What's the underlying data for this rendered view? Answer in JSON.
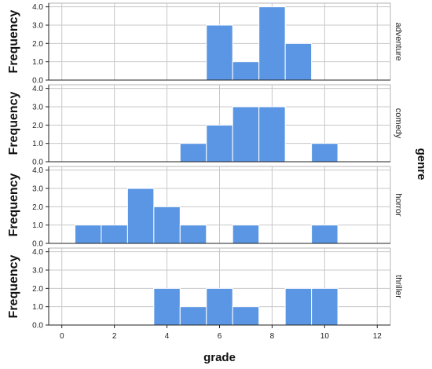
{
  "chart_data": {
    "type": "bar",
    "subtype": "faceted-histogram",
    "xlabel": "grade",
    "ylabel": "Frequency",
    "facet_label": "genre",
    "bar_color": "#5a96e3",
    "bin_width": 1,
    "xlim": [
      -0.5,
      12.5
    ],
    "xticks": [
      0,
      2,
      4,
      6,
      8,
      10,
      12
    ],
    "xtick_labels": [
      "0",
      "2",
      "4",
      "6",
      "8",
      "10",
      "12"
    ],
    "ylim": [
      0,
      4.2
    ],
    "yticks": [
      0,
      1,
      2,
      3,
      4
    ],
    "ytick_labels": [
      "0.0",
      "1.0",
      "2.0",
      "3.0",
      "4.0"
    ],
    "grid": true,
    "panels": [
      {
        "name": "adventure",
        "bins": [
          {
            "center": 6,
            "count": 3
          },
          {
            "center": 7,
            "count": 1
          },
          {
            "center": 8,
            "count": 4
          },
          {
            "center": 9,
            "count": 2
          }
        ]
      },
      {
        "name": "comedy",
        "bins": [
          {
            "center": 5,
            "count": 1
          },
          {
            "center": 6,
            "count": 2
          },
          {
            "center": 7,
            "count": 3
          },
          {
            "center": 8,
            "count": 3
          },
          {
            "center": 10,
            "count": 1
          }
        ]
      },
      {
        "name": "horror",
        "bins": [
          {
            "center": 1,
            "count": 1
          },
          {
            "center": 2,
            "count": 1
          },
          {
            "center": 3,
            "count": 3
          },
          {
            "center": 4,
            "count": 2
          },
          {
            "center": 5,
            "count": 1
          },
          {
            "center": 7,
            "count": 1
          },
          {
            "center": 10,
            "count": 1
          }
        ]
      },
      {
        "name": "thriller",
        "bins": [
          {
            "center": 4,
            "count": 2
          },
          {
            "center": 5,
            "count": 1
          },
          {
            "center": 6,
            "count": 2
          },
          {
            "center": 7,
            "count": 1
          },
          {
            "center": 9,
            "count": 2
          },
          {
            "center": 10,
            "count": 2
          }
        ]
      }
    ]
  }
}
